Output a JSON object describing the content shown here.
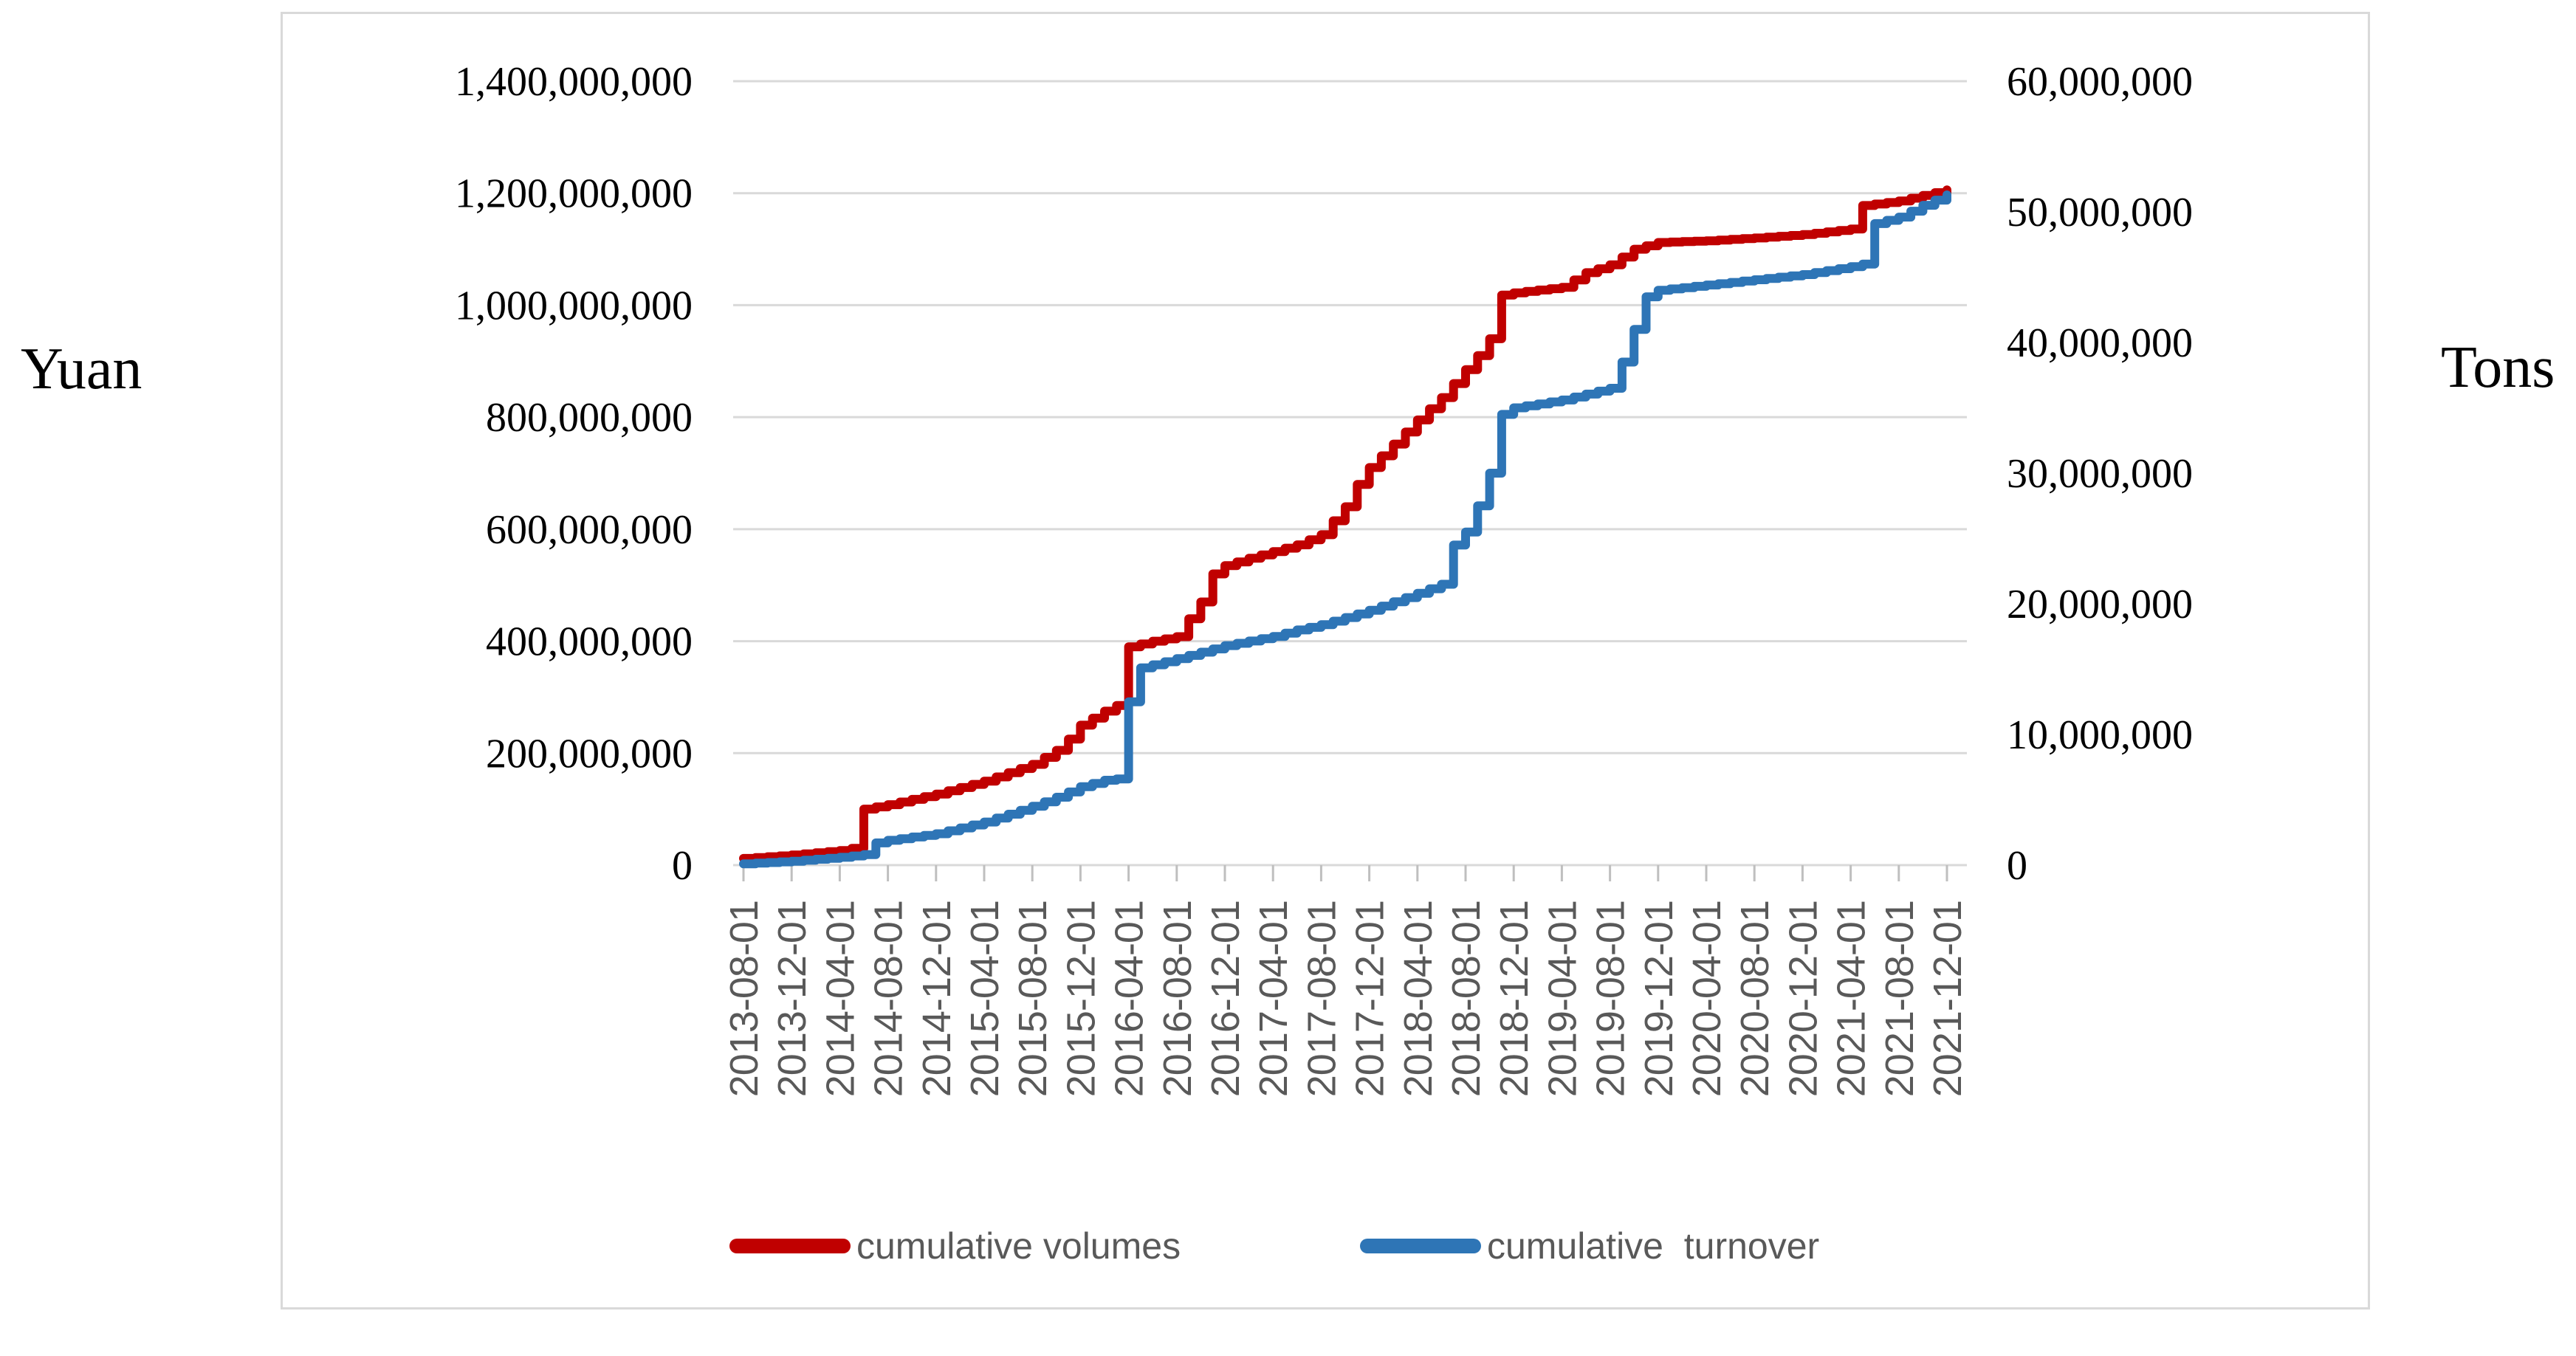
{
  "figure": {
    "left_unit_label": "Yuan",
    "right_unit_label": "Tons"
  },
  "legend": {
    "volumes_label": "cumulative volumes",
    "turnover_label": "cumulative  turnover"
  },
  "colors": {
    "red": "#c00000",
    "blue": "#2e75b6",
    "grid": "#d9d9d9",
    "tick": "#bfbfbf",
    "axis_text": "#000000",
    "x_label_text": "#595959",
    "legend_text": "#595959",
    "frame_border": "#d9d9d9"
  },
  "chart_data": {
    "type": "line",
    "title": "",
    "grid": true,
    "legend_position": "bottom",
    "left_axis": {
      "unit": "Yuan",
      "range": [
        0,
        1400000000
      ],
      "tick_interval": 200000000,
      "tick_labels": [
        "1,400,000,000",
        "1,200,000,000",
        "1,000,000,000",
        "800,000,000",
        "600,000,000",
        "400,000,000",
        "200,000,000",
        "0"
      ]
    },
    "right_axis": {
      "unit": "Tons",
      "range": [
        0,
        60000000
      ],
      "tick_interval": 10000000,
      "tick_labels": [
        "60,000,000",
        "50,000,000",
        "40,000,000",
        "30,000,000",
        "20,000,000",
        "10,000,000",
        "0"
      ]
    },
    "x_axis": {
      "tick_labels": [
        "2013-08-01",
        "2013-12-01",
        "2014-04-01",
        "2014-08-01",
        "2014-12-01",
        "2015-04-01",
        "2015-08-01",
        "2015-12-01",
        "2016-04-01",
        "2016-08-01",
        "2016-12-01",
        "2017-04-01",
        "2017-08-01",
        "2017-12-01",
        "2018-04-01",
        "2018-08-01",
        "2018-12-01",
        "2019-04-01",
        "2019-08-01",
        "2019-12-01",
        "2020-04-01",
        "2020-08-01",
        "2020-12-01",
        "2021-04-01",
        "2021-08-01",
        "2021-12-01"
      ]
    },
    "series": [
      {
        "name": "cumulative volumes",
        "axis": "left",
        "color": "#c00000",
        "points": [
          [
            "2013-08",
            12000000
          ],
          [
            "2013-12",
            18000000
          ],
          [
            "2014-04",
            26000000
          ],
          [
            "2014-05",
            30000000
          ],
          [
            "2014-06",
            100000000
          ],
          [
            "2014-08",
            108000000
          ],
          [
            "2014-12",
            127000000
          ],
          [
            "2015-04",
            150000000
          ],
          [
            "2015-08",
            180000000
          ],
          [
            "2015-10",
            205000000
          ],
          [
            "2015-11",
            225000000
          ],
          [
            "2015-12",
            250000000
          ],
          [
            "2016-02",
            275000000
          ],
          [
            "2016-03",
            285000000
          ],
          [
            "2016-04",
            390000000
          ],
          [
            "2016-06",
            400000000
          ],
          [
            "2016-08",
            408000000
          ],
          [
            "2016-09",
            440000000
          ],
          [
            "2016-10",
            470000000
          ],
          [
            "2016-11",
            520000000
          ],
          [
            "2016-12",
            535000000
          ],
          [
            "2017-02",
            548000000
          ],
          [
            "2017-04",
            560000000
          ],
          [
            "2017-06",
            572000000
          ],
          [
            "2017-08",
            590000000
          ],
          [
            "2017-10",
            640000000
          ],
          [
            "2017-11",
            680000000
          ],
          [
            "2017-12",
            710000000
          ],
          [
            "2018-02",
            752000000
          ],
          [
            "2018-04",
            795000000
          ],
          [
            "2018-06",
            835000000
          ],
          [
            "2018-08",
            885000000
          ],
          [
            "2018-09",
            910000000
          ],
          [
            "2018-10",
            940000000
          ],
          [
            "2018-11",
            1018000000
          ],
          [
            "2018-12",
            1022000000
          ],
          [
            "2019-04",
            1032000000
          ],
          [
            "2019-06",
            1058000000
          ],
          [
            "2019-08",
            1072000000
          ],
          [
            "2019-10",
            1100000000
          ],
          [
            "2019-12",
            1112000000
          ],
          [
            "2020-04",
            1115000000
          ],
          [
            "2020-08",
            1120000000
          ],
          [
            "2020-12",
            1126000000
          ],
          [
            "2021-04",
            1136000000
          ],
          [
            "2021-05",
            1178000000
          ],
          [
            "2021-08",
            1186000000
          ],
          [
            "2021-10",
            1196000000
          ],
          [
            "2021-12",
            1206000000
          ]
        ]
      },
      {
        "name": "cumulative turnover",
        "axis": "right",
        "color": "#2e75b6",
        "points": [
          [
            "2013-08",
            100000
          ],
          [
            "2013-12",
            300000
          ],
          [
            "2014-04",
            600000
          ],
          [
            "2014-06",
            800000
          ],
          [
            "2014-07",
            1700000
          ],
          [
            "2014-08",
            1900000
          ],
          [
            "2014-12",
            2400000
          ],
          [
            "2015-04",
            3300000
          ],
          [
            "2015-08",
            4500000
          ],
          [
            "2015-10",
            5200000
          ],
          [
            "2015-12",
            6000000
          ],
          [
            "2016-02",
            6500000
          ],
          [
            "2016-03",
            6600000
          ],
          [
            "2016-04",
            12500000
          ],
          [
            "2016-05",
            15100000
          ],
          [
            "2016-08",
            15800000
          ],
          [
            "2016-12",
            16800000
          ],
          [
            "2017-04",
            17500000
          ],
          [
            "2017-06",
            18000000
          ],
          [
            "2017-08",
            18400000
          ],
          [
            "2017-12",
            19500000
          ],
          [
            "2018-04",
            20800000
          ],
          [
            "2018-06",
            21500000
          ],
          [
            "2018-07",
            24500000
          ],
          [
            "2018-08",
            25500000
          ],
          [
            "2018-09",
            27500000
          ],
          [
            "2018-10",
            30000000
          ],
          [
            "2018-11",
            34500000
          ],
          [
            "2018-12",
            35000000
          ],
          [
            "2019-04",
            35600000
          ],
          [
            "2019-08",
            36500000
          ],
          [
            "2019-09",
            38500000
          ],
          [
            "2019-10",
            41000000
          ],
          [
            "2019-11",
            43500000
          ],
          [
            "2019-12",
            44000000
          ],
          [
            "2020-04",
            44400000
          ],
          [
            "2020-08",
            44800000
          ],
          [
            "2020-12",
            45200000
          ],
          [
            "2021-04",
            45800000
          ],
          [
            "2021-05",
            46000000
          ],
          [
            "2021-06",
            49100000
          ],
          [
            "2021-08",
            49600000
          ],
          [
            "2021-10",
            50500000
          ],
          [
            "2021-12",
            51300000
          ]
        ]
      }
    ]
  }
}
